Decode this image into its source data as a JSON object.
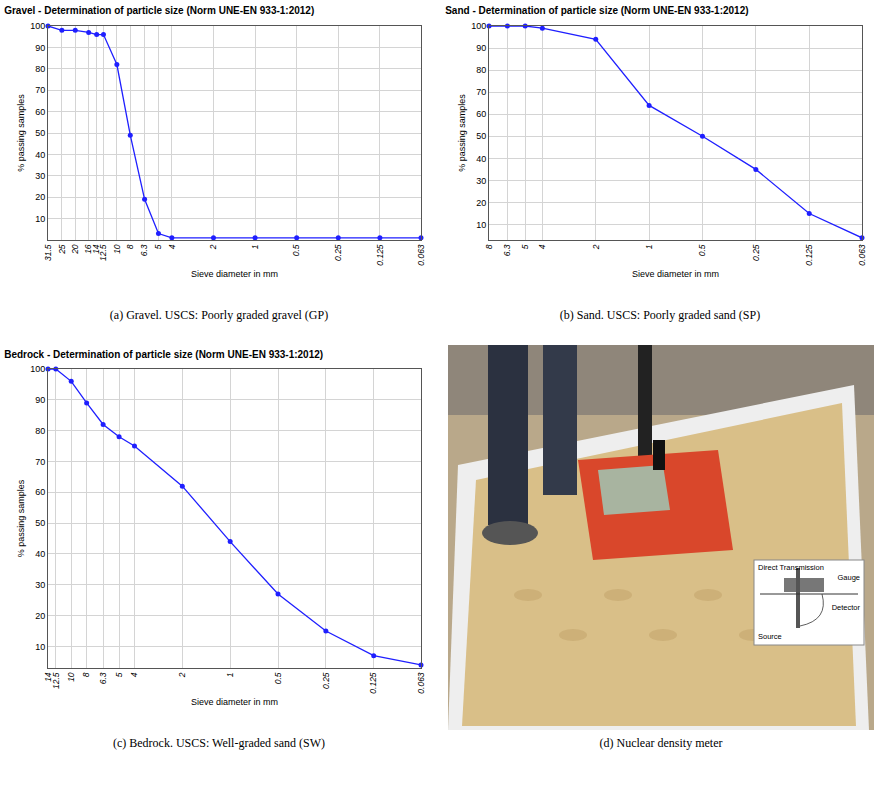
{
  "chart_data": [
    {
      "type": "line",
      "title": "Gravel - Determination of particle size (Norm UNE-EN 933-1:2012)",
      "caption": "(a) Gravel. USCS: Poorly graded gravel (GP)",
      "x_label": "Sieve diameter in mm",
      "y_label": "% passing samples",
      "x": [
        31.5,
        25,
        20,
        16,
        14,
        12.5,
        10,
        8,
        6.3,
        5,
        4,
        2,
        1,
        0.5,
        0.25,
        0.125,
        0.063
      ],
      "values": [
        100,
        98,
        98,
        97,
        96,
        96,
        82,
        49,
        19,
        3,
        1,
        1,
        1,
        1,
        1,
        1,
        1
      ],
      "color": "#1f1fff",
      "marker": "circle",
      "line_style": "solid",
      "log": "x",
      "grid": true,
      "xlim": [
        31.5,
        0.063
      ],
      "xticks": [
        31.5,
        25,
        20,
        16,
        14,
        12.5,
        10,
        8,
        6.3,
        5,
        4,
        2,
        1,
        0.5,
        0.25,
        0.125,
        0.063
      ],
      "ylim": [
        0,
        100
      ],
      "yticks": [
        10,
        20,
        30,
        40,
        50,
        60,
        70,
        80,
        90,
        100
      ]
    },
    {
      "type": "line",
      "title": "Sand - Determination of particle size (Norm UNE-EN 933-1:2012)",
      "caption": "(b) Sand. USCS: Poorly graded sand (SP)",
      "x_label": "Sieve diameter in mm",
      "y_label": "% passing samples",
      "x": [
        8,
        6.3,
        5,
        4,
        2,
        1,
        0.5,
        0.25,
        0.125,
        0.063
      ],
      "values": [
        100,
        100,
        100,
        99,
        94,
        64,
        50,
        35,
        15,
        4
      ],
      "color": "#1f1fff",
      "marker": "circle",
      "line_style": "solid",
      "log": "x",
      "grid": true,
      "xlim": [
        8,
        0.063
      ],
      "xticks": [
        8,
        6.3,
        5,
        4,
        2,
        1,
        0.5,
        0.25,
        0.125,
        0.063
      ],
      "ylim": [
        3,
        100
      ],
      "yticks": [
        10,
        20,
        30,
        40,
        50,
        60,
        70,
        80,
        90,
        100
      ]
    },
    {
      "type": "line",
      "title": "Bedrock - Determination of particle size (Norm UNE-EN 933-1:2012)",
      "caption": "(c) Bedrock. USCS: Well-graded sand (SW)",
      "x_label": "Sieve diameter in mm",
      "y_label": "% passing samples",
      "x": [
        14,
        12.5,
        10,
        8,
        6.3,
        5,
        4,
        2,
        1,
        0.5,
        0.25,
        0.125,
        0.063
      ],
      "values": [
        100,
        100,
        96,
        89,
        82,
        78,
        75,
        62,
        44,
        27,
        15,
        7,
        4
      ],
      "color": "#1f1fff",
      "marker": "circle",
      "line_style": "solid",
      "log": "x",
      "grid": true,
      "xlim": [
        14,
        0.063
      ],
      "xticks": [
        14,
        12.5,
        10,
        8,
        6.3,
        5,
        4,
        2,
        1,
        0.5,
        0.25,
        0.125,
        0.063
      ],
      "ylim": [
        3,
        100
      ],
      "yticks": [
        10,
        20,
        30,
        40,
        50,
        60,
        70,
        80,
        90,
        100
      ]
    }
  ],
  "photo": {
    "caption": "(d) Nuclear density meter",
    "inset_labels": [
      "Direct Transmission",
      "Gauge",
      "Detector",
      "Source"
    ]
  }
}
